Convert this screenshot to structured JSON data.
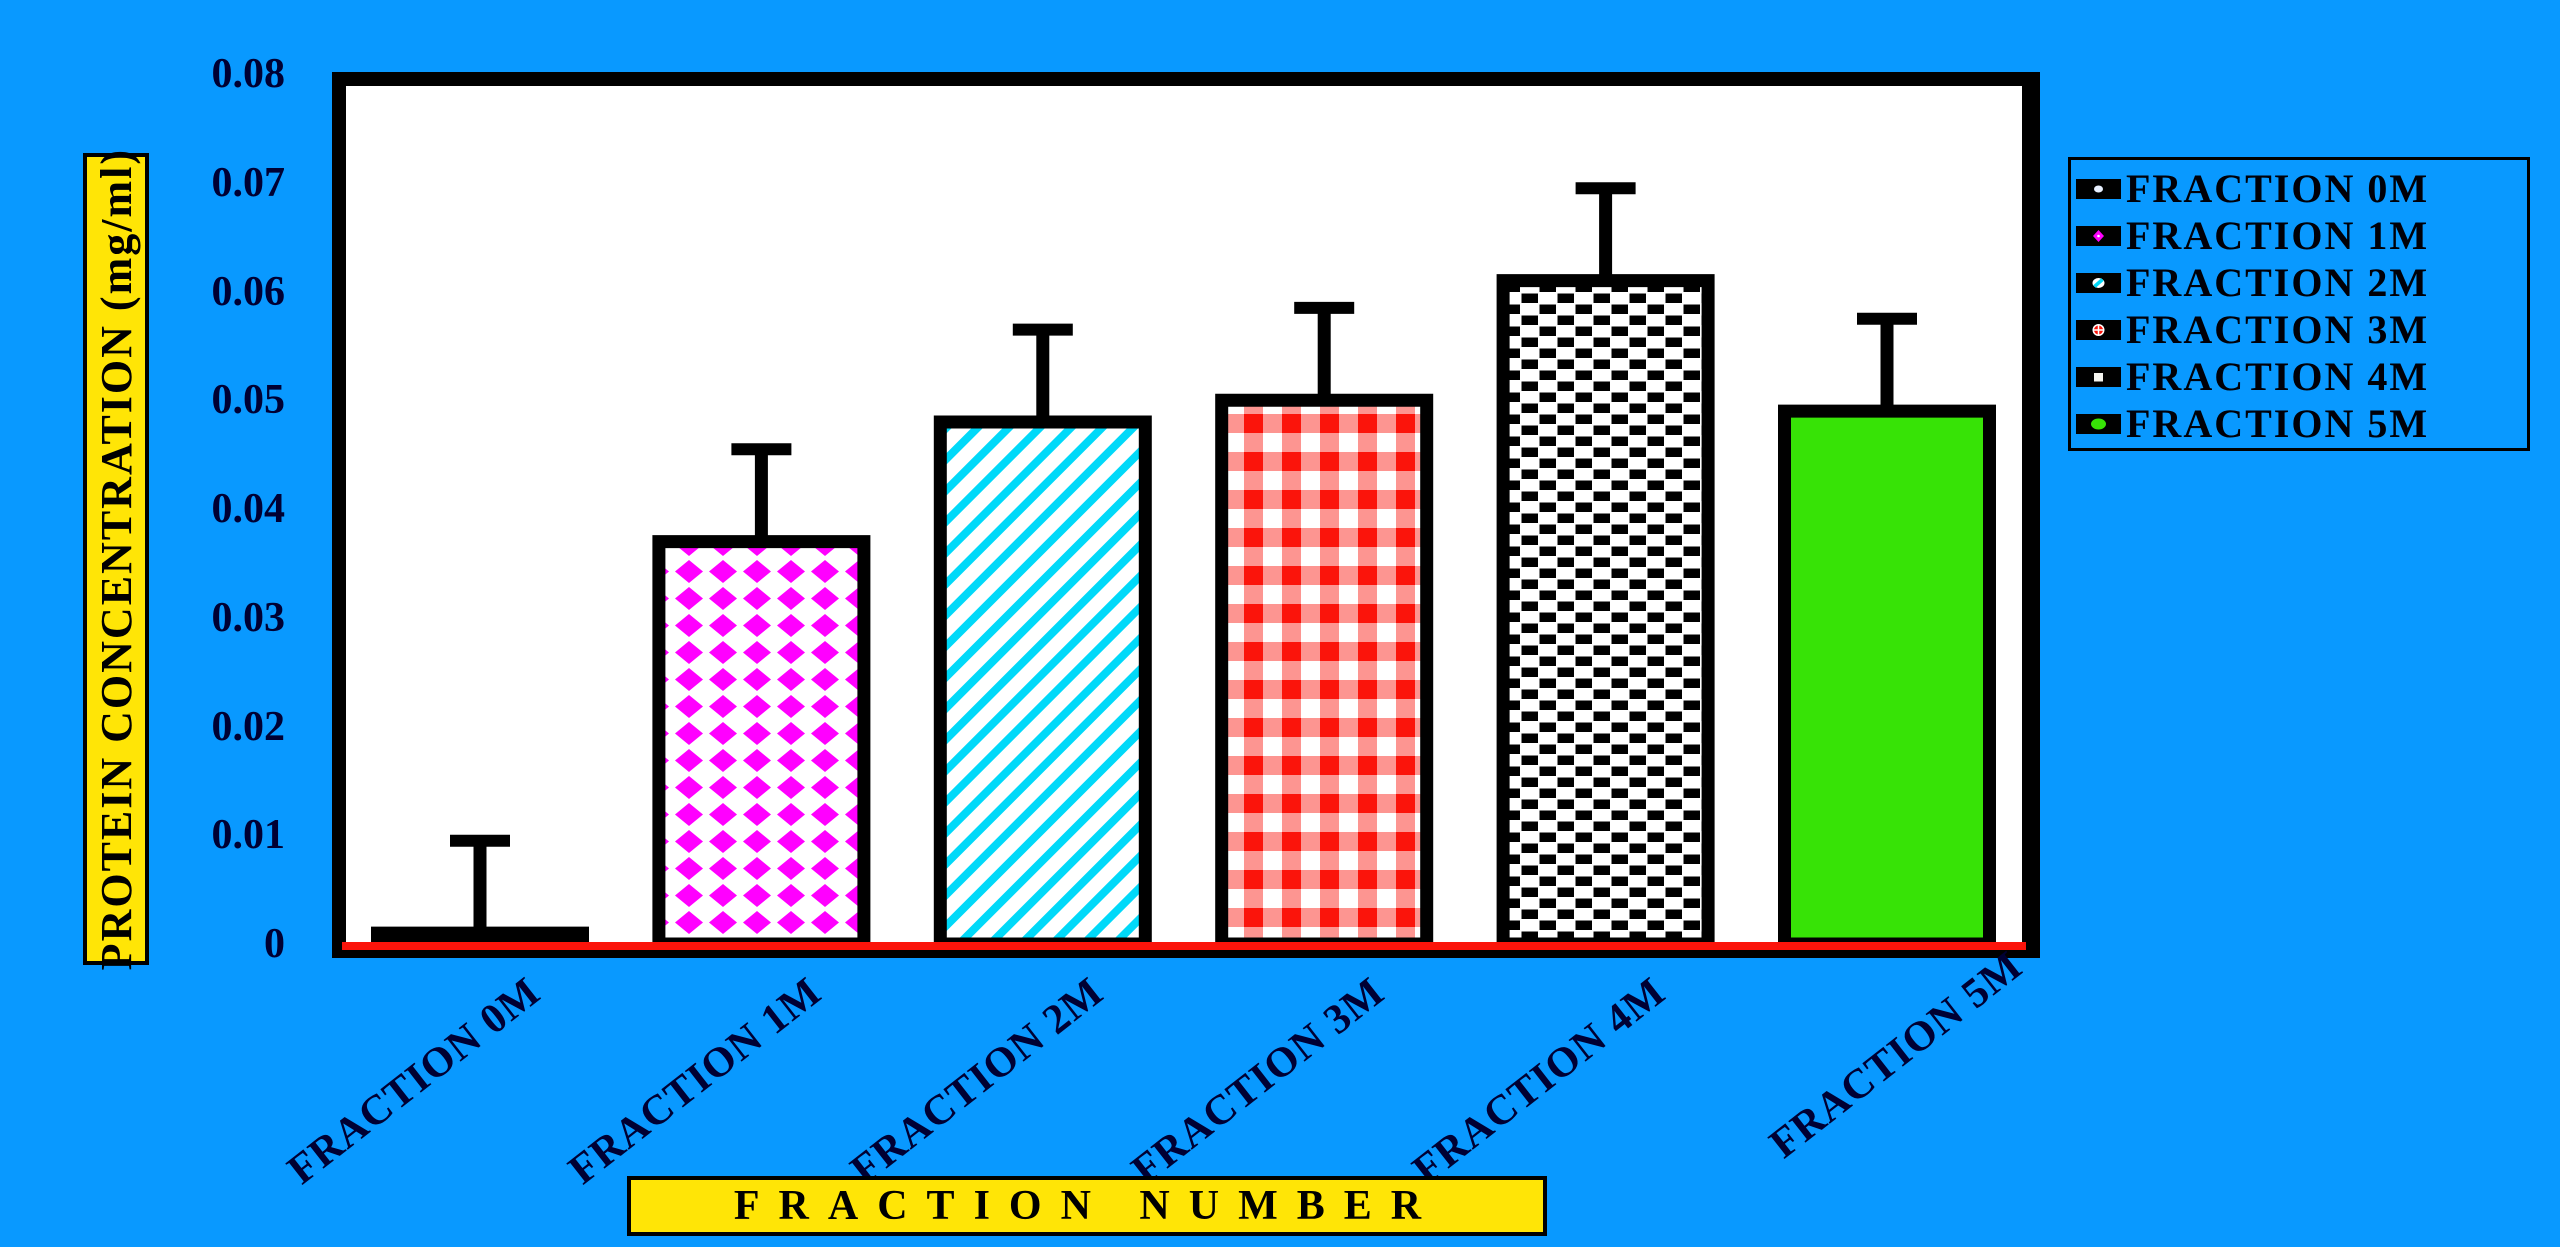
{
  "page": {
    "background_color": "#0999FF"
  },
  "chart_data": {
    "type": "bar",
    "title": "",
    "xlabel": "FRACTION NUMBER",
    "ylabel": "PROTEIN CONCENTRATION (mg/ml)",
    "categories": [
      "FRACTION 0M",
      "FRACTION 1M",
      "FRACTION 2M",
      "FRACTION 3M",
      "FRACTION 4M",
      "FRACTION 5M"
    ],
    "values": [
      0.001,
      0.037,
      0.048,
      0.05,
      0.061,
      0.049
    ],
    "error_bar_tops": [
      0.0095,
      0.0455,
      0.0565,
      0.0585,
      0.0695,
      0.0575
    ],
    "ylim": [
      0,
      0.08
    ],
    "yticks": [
      0,
      0.01,
      0.02,
      0.03,
      0.04,
      0.05,
      0.06,
      0.07,
      0.08
    ],
    "ytick_labels": [
      "0",
      "0.01",
      "0.02",
      "0.03",
      "0.04",
      "0.05",
      "0.06",
      "0.07",
      "0.08"
    ],
    "grid": false,
    "legend_position": "right",
    "plot_background": "#FFFFFF",
    "background_color": "#0999FF",
    "axis_label_box_color": "#FFE506",
    "tick_text_color": "#000033",
    "x_axis_line_color": "#FB140B",
    "bar_border_color": "#000000",
    "bar_patterns": [
      {
        "name": "white-dots-on-black",
        "colors": [
          "#000000",
          "#FFFFFF"
        ]
      },
      {
        "name": "magenta-diamonds-on-white",
        "colors": [
          "#FF00FF",
          "#FFFFFF"
        ]
      },
      {
        "name": "cyan-diagonal-stripes-on-white",
        "colors": [
          "#00D9F9",
          "#FFFFFF"
        ]
      },
      {
        "name": "red-gingham-check-on-white",
        "colors": [
          "#FB140B",
          "#FFFFFF"
        ]
      },
      {
        "name": "black-white-checkerboard",
        "colors": [
          "#000000",
          "#FFFFFF"
        ]
      },
      {
        "name": "solid-green",
        "colors": [
          "#37E306"
        ]
      }
    ],
    "legend": {
      "entries": [
        {
          "label": "FRACTION 0M",
          "swatch": "white-dot-on-black"
        },
        {
          "label": "FRACTION 1M",
          "swatch": "magenta-diamond-on-black"
        },
        {
          "label": "FRACTION 2M",
          "swatch": "cyan-slash-on-black"
        },
        {
          "label": "FRACTION 3M",
          "swatch": "red-checker-dot-on-black"
        },
        {
          "label": "FRACTION 4M",
          "swatch": "white-square-on-black"
        },
        {
          "label": "FRACTION 5M",
          "swatch": "green-dot-on-black"
        }
      ]
    }
  }
}
